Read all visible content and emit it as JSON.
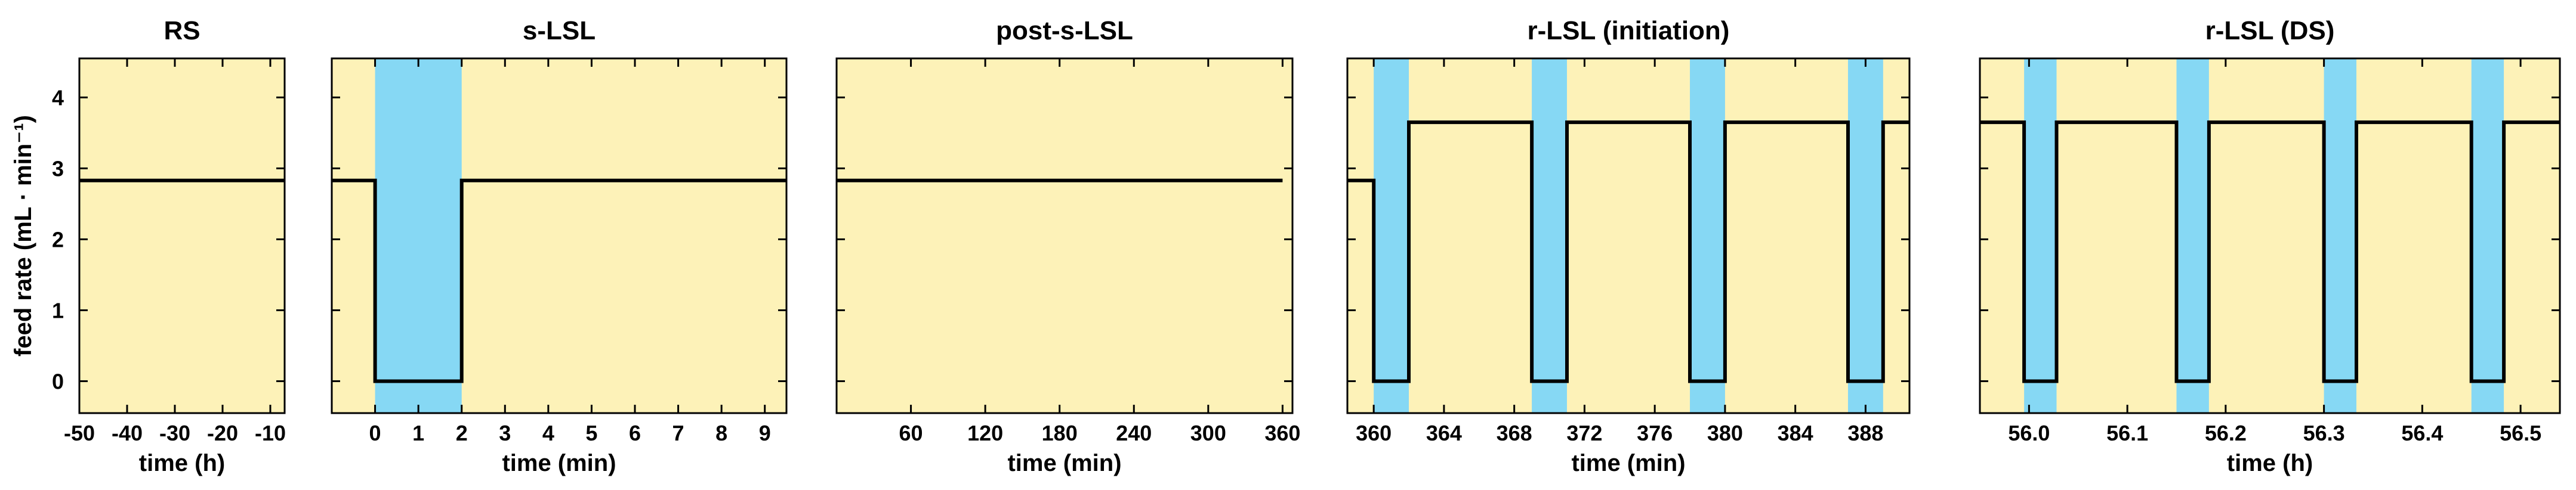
{
  "colors": {
    "background": "#fdf2b8",
    "feed_off_band": "#86d8f4",
    "line": "#000000"
  },
  "chart_data": [
    {
      "type": "line",
      "title": "RS",
      "xlabel": "time (h)",
      "ylabel": "feed rate  (mL · min⁻¹)",
      "xlim": [
        -50,
        -7
      ],
      "ylim": [
        -0.45,
        4.55
      ],
      "xticks": [
        -50,
        -40,
        -30,
        -20,
        -10
      ],
      "xtick_labels": [
        "-50",
        "-40",
        "-30",
        "-20",
        "-10"
      ],
      "yticks": [
        0,
        1,
        2,
        3,
        4
      ],
      "ytick_labels": [
        "0",
        "1",
        "2",
        "3",
        "4"
      ],
      "x": [
        -50,
        -7
      ],
      "y": [
        2.83,
        2.83
      ],
      "feed_off_intervals": []
    },
    {
      "type": "line",
      "title": "s-LSL",
      "xlabel": "time (min)",
      "xlim": [
        -1,
        9.5
      ],
      "ylim": [
        -0.45,
        4.55
      ],
      "xticks": [
        0,
        1,
        2,
        3,
        4,
        5,
        6,
        7,
        8,
        9
      ],
      "xtick_labels": [
        "0",
        "1",
        "2",
        "3",
        "4",
        "5",
        "6",
        "7",
        "8",
        "9"
      ],
      "yticks": [
        0,
        1,
        2,
        3,
        4
      ],
      "x": [
        -1,
        0,
        0,
        2,
        2,
        9.5
      ],
      "y": [
        2.83,
        2.83,
        0,
        0,
        2.83,
        2.83
      ],
      "feed_off_intervals": [
        [
          0,
          2
        ]
      ]
    },
    {
      "type": "line",
      "title": "post-s-LSL",
      "xlabel": "time (min)",
      "xlim": [
        0,
        368
      ],
      "ylim": [
        -0.45,
        4.55
      ],
      "xticks": [
        60,
        120,
        180,
        240,
        300,
        360
      ],
      "xtick_labels": [
        "60",
        "120",
        "180",
        "240",
        "300",
        "360"
      ],
      "yticks": [
        0,
        1,
        2,
        3,
        4
      ],
      "x": [
        0,
        360
      ],
      "y": [
        2.83,
        2.83
      ],
      "feed_off_intervals": []
    },
    {
      "type": "line",
      "title": "r-LSL (initiation)",
      "xlabel": "time (min)",
      "xlim": [
        358.5,
        390.5
      ],
      "ylim": [
        -0.45,
        4.55
      ],
      "xticks": [
        360,
        364,
        368,
        372,
        376,
        380,
        384,
        388
      ],
      "xtick_labels": [
        "360",
        "364",
        "368",
        "372",
        "376",
        "380",
        "384",
        "388"
      ],
      "yticks": [
        0,
        1,
        2,
        3,
        4
      ],
      "x": [
        358.5,
        360,
        360,
        362,
        362,
        369,
        369,
        371,
        371,
        378,
        378,
        380,
        380,
        387,
        387,
        389,
        389,
        390.5
      ],
      "y": [
        2.83,
        2.83,
        0,
        0,
        3.65,
        3.65,
        0,
        0,
        3.65,
        3.65,
        0,
        0,
        3.65,
        3.65,
        0,
        0,
        3.65,
        3.65
      ],
      "feed_off_intervals": [
        [
          360,
          362
        ],
        [
          369,
          371
        ],
        [
          378,
          380
        ],
        [
          387,
          389
        ]
      ]
    },
    {
      "type": "line",
      "title": "r-LSL (DS)",
      "xlabel": "time (h)",
      "xlim": [
        55.95,
        56.54
      ],
      "ylim": [
        -0.45,
        4.55
      ],
      "xticks": [
        56.0,
        56.1,
        56.2,
        56.3,
        56.4,
        56.5
      ],
      "xtick_labels": [
        "56.0",
        "56.1",
        "56.2",
        "56.3",
        "56.4",
        "56.5"
      ],
      "yticks": [
        0,
        1,
        2,
        3,
        4
      ],
      "x": [
        55.95,
        55.995,
        55.995,
        56.028,
        56.028,
        56.15,
        56.15,
        56.183,
        56.183,
        56.3,
        56.3,
        56.333,
        56.333,
        56.45,
        56.45,
        56.483,
        56.483,
        56.54
      ],
      "y": [
        3.65,
        3.65,
        0,
        0,
        3.65,
        3.65,
        0,
        0,
        3.65,
        3.65,
        0,
        0,
        3.65,
        3.65,
        0,
        0,
        3.65,
        3.65
      ],
      "feed_off_intervals": [
        [
          55.995,
          56.028
        ],
        [
          56.15,
          56.183
        ],
        [
          56.3,
          56.333
        ],
        [
          56.45,
          56.483
        ]
      ]
    }
  ]
}
